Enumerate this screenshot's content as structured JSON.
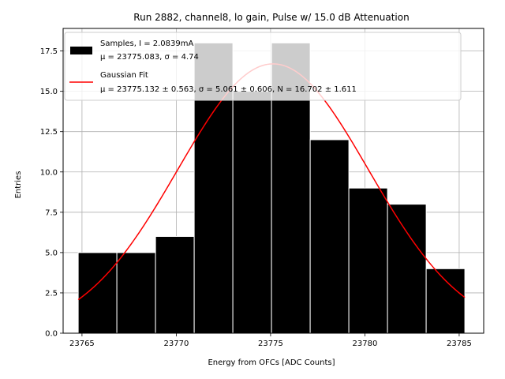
{
  "chart_data": {
    "type": "bar",
    "title": "Run 2882, channel8, lo gain, Pulse w/ 15.0 dB Attenuation",
    "xlabel": "Energy from OFCs [ADC Counts]",
    "ylabel": "Entries",
    "xlim": [
      23764.0,
      23786.3
    ],
    "ylim": [
      0,
      18.9
    ],
    "xticks": [
      23765,
      23770,
      23775,
      23780,
      23785
    ],
    "xtick_labels": [
      "23765",
      "23770",
      "23775",
      "23780",
      "23785"
    ],
    "yticks": [
      0,
      2.5,
      5,
      7.5,
      10,
      12.5,
      15,
      17.5
    ],
    "ytick_labels": [
      "0.0",
      "2.5",
      "5.0",
      "7.5",
      "10.0",
      "12.5",
      "15.0",
      "17.5"
    ],
    "grid": true,
    "legend_position": "top-right",
    "histogram": {
      "bin_edges": [
        23764.8,
        23766.85,
        23768.9,
        23770.95,
        23773.0,
        23775.05,
        23777.1,
        23779.15,
        23781.2,
        23783.25,
        23785.3
      ],
      "counts": [
        5,
        5,
        6,
        18,
        15,
        18,
        12,
        9,
        8,
        4
      ],
      "color": "#000000",
      "edge_color": "#ffffff"
    },
    "fit": {
      "type": "gaussian",
      "mu": 23775.132,
      "sigma": 5.061,
      "N": 16.702,
      "x_range": [
        23764.8,
        23785.3
      ],
      "color": "#ff0000"
    },
    "legend": [
      {
        "line1": "Samples, I = 2.0839mA",
        "line2": "μ = 23775.083, σ = 4.74",
        "kind": "patch",
        "color": "#000000"
      },
      {
        "line1": "Gaussian Fit",
        "line2": "μ = 23775.132 ± 0.563, σ = 5.061 ± 0.606, N = 16.702 ± 1.611",
        "kind": "line",
        "color": "#ff0000"
      }
    ]
  }
}
